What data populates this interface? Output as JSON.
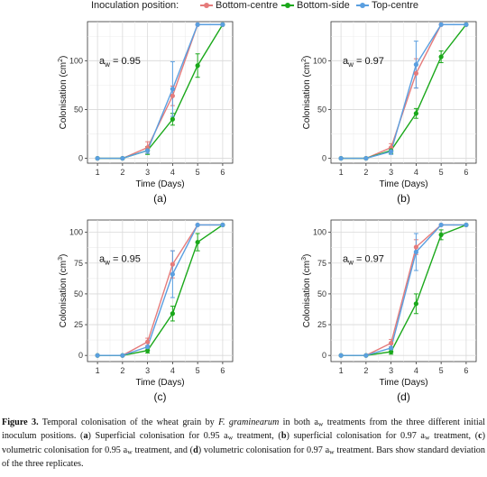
{
  "legend": {
    "title": "Inoculation position:",
    "items": [
      {
        "label": "Bottom-centre",
        "color": "#e57b7b"
      },
      {
        "label": "Bottom-side",
        "color": "#1aa81a"
      },
      {
        "label": "Top-centre",
        "color": "#5a9fe0"
      }
    ]
  },
  "chart_data": [
    {
      "type": "line",
      "panel_label": "(a)",
      "annotation": "a_w = 0.95",
      "xlabel": "Time (Days)",
      "ylabel": "Colonisation (cm2)",
      "x": [
        1,
        2,
        3,
        4,
        5,
        6
      ],
      "ylim": [
        -5,
        140
      ],
      "yticks": [
        0,
        50,
        100
      ],
      "series": [
        {
          "name": "Bottom-centre",
          "values": [
            0,
            0,
            11,
            64,
            137,
            137
          ],
          "err": [
            0,
            0,
            6,
            10,
            0,
            0
          ]
        },
        {
          "name": "Bottom-side",
          "values": [
            0,
            0,
            8,
            40,
            95,
            137
          ],
          "err": [
            0,
            0,
            4,
            6,
            12,
            0
          ]
        },
        {
          "name": "Top-centre",
          "values": [
            0,
            0,
            8,
            71,
            137,
            137
          ],
          "err": [
            0,
            0,
            3,
            28,
            0,
            0
          ]
        }
      ]
    },
    {
      "type": "line",
      "panel_label": "(b)",
      "annotation": "a_w = 0.97",
      "xlabel": "Time (Days)",
      "ylabel": "Colonisation (cm2)",
      "x": [
        1,
        2,
        3,
        4,
        5,
        6
      ],
      "ylim": [
        -5,
        140
      ],
      "yticks": [
        0,
        50,
        100
      ],
      "series": [
        {
          "name": "Bottom-centre",
          "values": [
            0,
            0,
            11,
            87,
            137,
            137
          ],
          "err": [
            0,
            0,
            4,
            15,
            0,
            0
          ]
        },
        {
          "name": "Bottom-side",
          "values": [
            0,
            0,
            8,
            46,
            104,
            137
          ],
          "err": [
            0,
            0,
            3,
            5,
            6,
            0
          ]
        },
        {
          "name": "Top-centre",
          "values": [
            0,
            0,
            7,
            96,
            137,
            137
          ],
          "err": [
            0,
            0,
            3,
            24,
            0,
            0
          ]
        }
      ]
    },
    {
      "type": "line",
      "panel_label": "(c)",
      "annotation": "a_w = 0.95",
      "xlabel": "Time (Days)",
      "ylabel": "Colonisation (cm3)",
      "x": [
        1,
        2,
        3,
        4,
        5,
        6
      ],
      "ylim": [
        -5,
        110
      ],
      "yticks": [
        0,
        25,
        50,
        75,
        100
      ],
      "series": [
        {
          "name": "Bottom-centre",
          "values": [
            0,
            0,
            11,
            74,
            106,
            106
          ],
          "err": [
            0,
            0,
            3,
            11,
            0,
            0
          ]
        },
        {
          "name": "Bottom-side",
          "values": [
            0,
            0,
            4,
            34,
            92,
            106
          ],
          "err": [
            0,
            0,
            2,
            6,
            7,
            0
          ]
        },
        {
          "name": "Top-centre",
          "values": [
            0,
            0,
            7,
            66,
            106,
            106
          ],
          "err": [
            0,
            0,
            3,
            19,
            0,
            0
          ]
        }
      ]
    },
    {
      "type": "line",
      "panel_label": "(d)",
      "annotation": "a_w = 0.97",
      "xlabel": "Time (Days)",
      "ylabel": "Colonisation (cm3)",
      "x": [
        1,
        2,
        3,
        4,
        5,
        6
      ],
      "ylim": [
        -5,
        110
      ],
      "yticks": [
        0,
        25,
        50,
        75,
        100
      ],
      "series": [
        {
          "name": "Bottom-centre",
          "values": [
            0,
            0,
            10,
            88,
            106,
            106
          ],
          "err": [
            0,
            0,
            3,
            6,
            0,
            0
          ]
        },
        {
          "name": "Bottom-side",
          "values": [
            0,
            0,
            3,
            42,
            98,
            106
          ],
          "err": [
            0,
            0,
            2,
            8,
            4,
            0
          ]
        },
        {
          "name": "Top-centre",
          "values": [
            0,
            0,
            6,
            84,
            106,
            106
          ],
          "err": [
            0,
            0,
            3,
            15,
            0,
            0
          ]
        }
      ]
    }
  ],
  "caption": {
    "label": "Figure 3.",
    "text_1": " Temporal colonisation of the wheat grain by ",
    "species": "F. graminearum",
    "text_2": " in both a",
    "w_1": "w",
    "text_3": " treatments from the three different initial inoculum positions. (",
    "a": "a",
    "text_4": ") Superficial colonisation for 0.95 a",
    "w_2": "w",
    "text_5": " treatment, (",
    "b": "b",
    "text_6": ") superficial colonisation for 0.97 a",
    "w_3": "w",
    "text_7": " treatment, (",
    "c": "c",
    "text_8": ") volumetric colonisation for 0.95 a",
    "w_4": "w",
    "text_9": " treatment, and (",
    "d": "d",
    "text_10": ") volumetric colonisation for 0.97 a",
    "w_5": "w",
    "text_11": " treatment. Bars show standard deviation of the three replicates."
  }
}
